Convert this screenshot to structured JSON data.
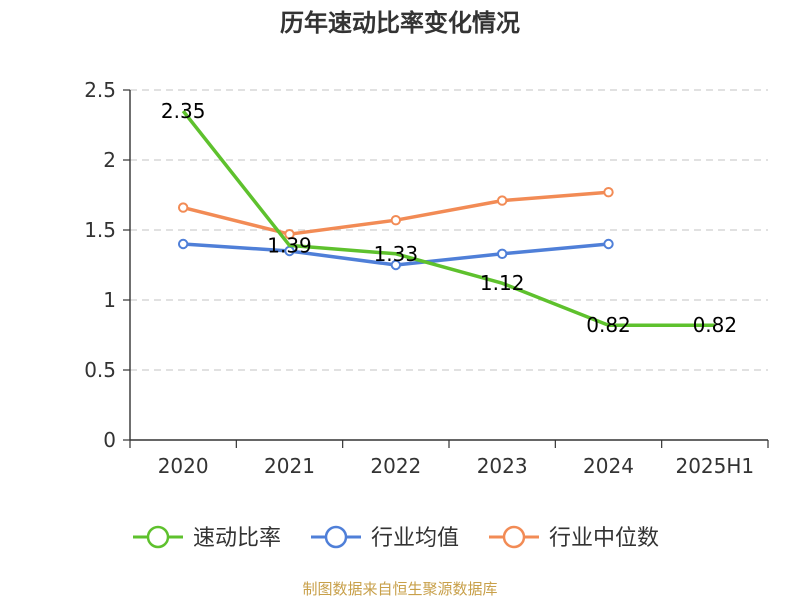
{
  "chart_data": {
    "type": "line",
    "title": "历年速动比率变化情况",
    "categories": [
      "2020",
      "2021",
      "2022",
      "2023",
      "2024",
      "2025H1"
    ],
    "ylim": [
      0,
      2.5
    ],
    "yticks": [
      "0",
      "0.5",
      "1",
      "1.5",
      "2",
      "2.5"
    ],
    "grid": true,
    "legend_position": "bottom",
    "series": [
      {
        "name": "速动比率",
        "color": "#5ec12d",
        "values": [
          2.35,
          1.39,
          1.33,
          1.12,
          0.82,
          0.82
        ],
        "labels": [
          "2.35",
          "1.39",
          "1.33",
          "1.12",
          "0.82",
          "0.82"
        ]
      },
      {
        "name": "行业均值",
        "color": "#4f7fd8",
        "values": [
          1.4,
          1.35,
          1.25,
          1.33,
          1.4,
          null
        ]
      },
      {
        "name": "行业中位数",
        "color": "#f28b55",
        "values": [
          1.66,
          1.47,
          1.57,
          1.71,
          1.77,
          null
        ]
      }
    ]
  },
  "source": "制图数据来自恒生聚源数据库"
}
